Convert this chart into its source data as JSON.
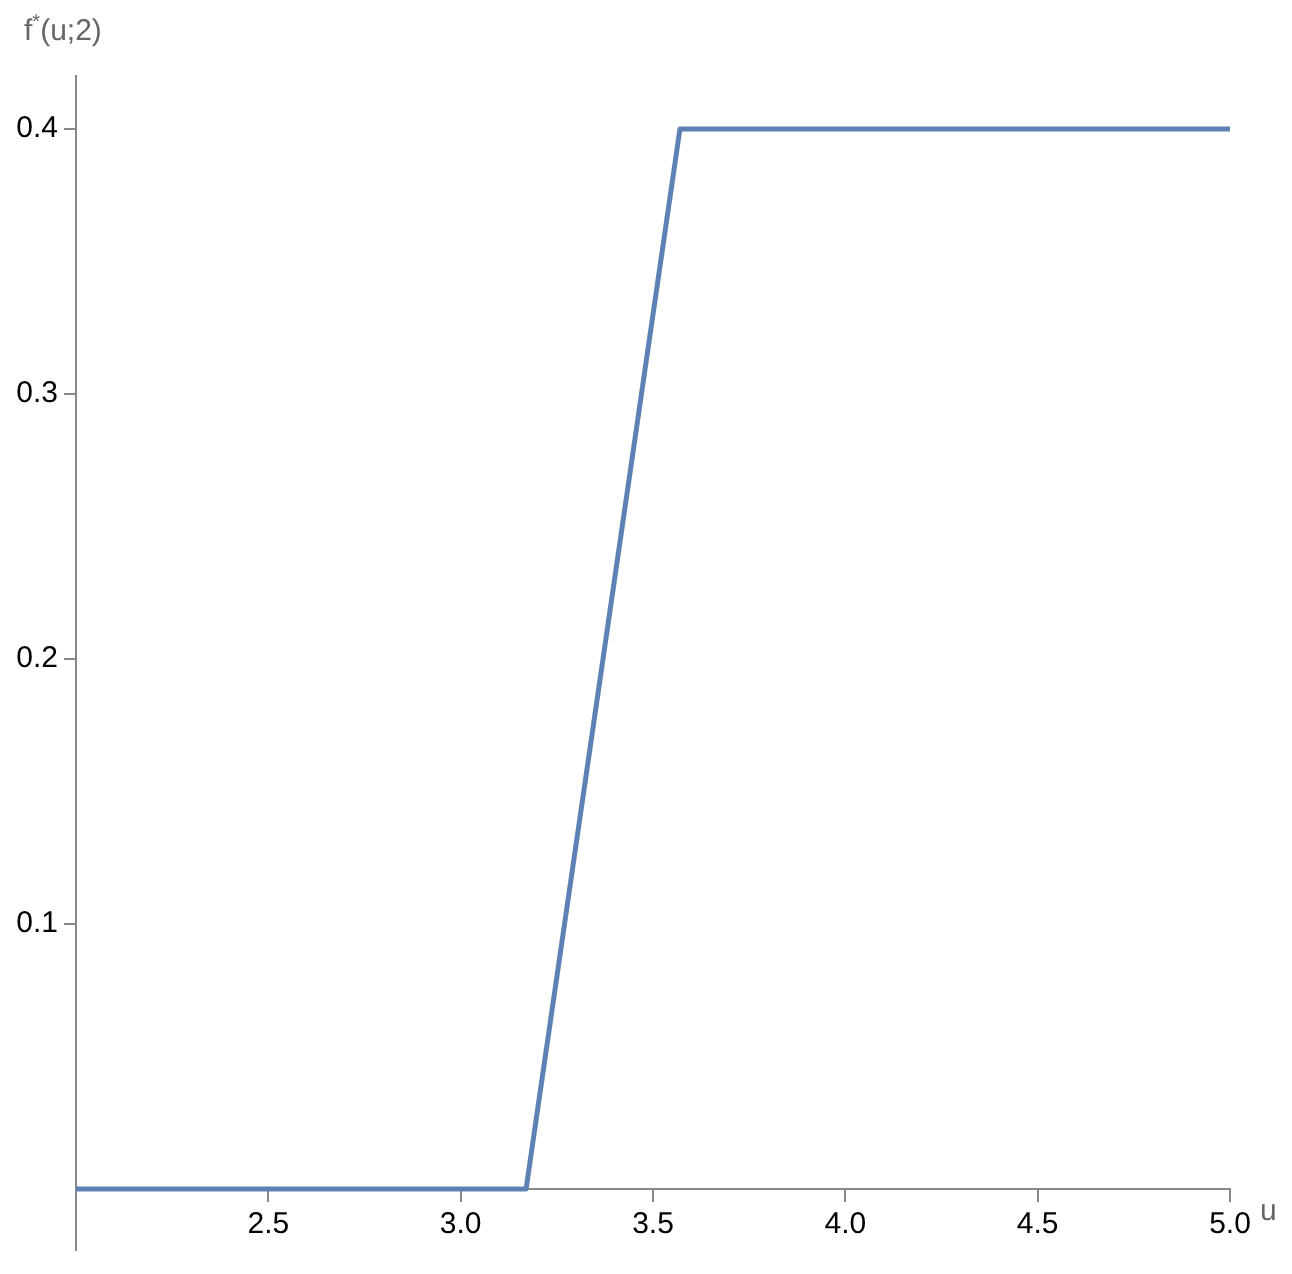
{
  "chart_data": {
    "type": "line",
    "xlabel": "u",
    "ylabel": "f$^{*}$(u;2)",
    "x": [
      2,
      3.17,
      3.57,
      5
    ],
    "values": [
      0,
      0,
      0.4,
      0.4
    ],
    "color": "#5e81b5",
    "xlim": [
      2,
      5
    ],
    "ylim": [
      -0.023,
      0.42
    ],
    "xticks": [
      2.5,
      {
        "value": 3,
        "label": "3.0"
      },
      3.5,
      {
        "value": 4,
        "label": "4.0"
      },
      4.5,
      {
        "value": 5,
        "label": "5.0"
      }
    ],
    "yticks": [
      0.1,
      0.2,
      0.3,
      0.4
    ],
    "grid": false,
    "legend": false,
    "marker": "none",
    "line_style": "solid"
  }
}
